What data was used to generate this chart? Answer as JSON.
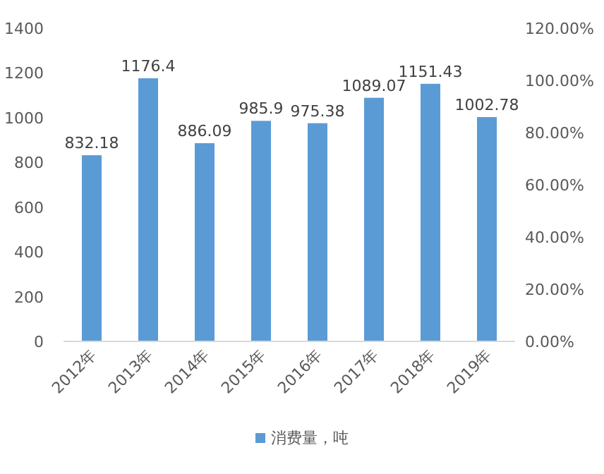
{
  "chart_data": {
    "type": "bar",
    "categories": [
      "2012年",
      "2013年",
      "2014年",
      "2015年",
      "2016年",
      "2017年",
      "2018年",
      "2019年"
    ],
    "series": [
      {
        "name": "消费量，吨",
        "color": "#5b9bd5",
        "values": [
          832.18,
          1176.4,
          886.09,
          985.9,
          975.38,
          1089.07,
          1151.43,
          1002.78
        ]
      }
    ],
    "ylim": [
      0,
      1400
    ],
    "yticks": [
      0,
      200,
      400,
      600,
      800,
      1000,
      1200,
      1400
    ],
    "y2lim": [
      0,
      120
    ],
    "y2ticks": [
      {
        "value": 0,
        "label": "0.00%"
      },
      {
        "value": 20,
        "label": "20.00%"
      },
      {
        "value": 40,
        "label": "40.00%"
      },
      {
        "value": 60,
        "label": "60.00%"
      },
      {
        "value": 80,
        "label": "80.00%"
      },
      {
        "value": 100,
        "label": "100.00%"
      },
      {
        "value": 120,
        "label": "120.00%"
      }
    ],
    "data_labels": true,
    "legend": "bottom"
  }
}
